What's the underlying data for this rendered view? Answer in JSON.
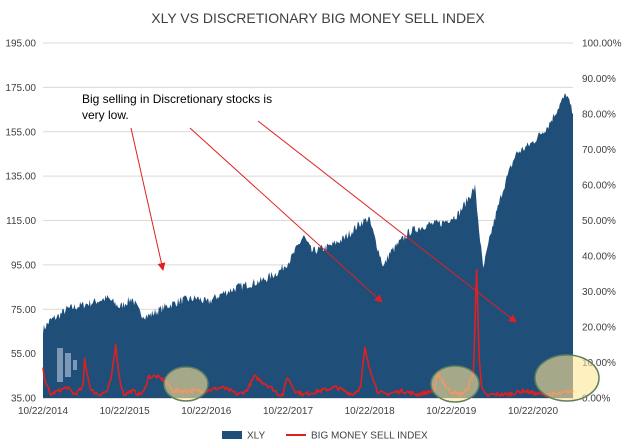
{
  "chart_data": {
    "type": "area",
    "title": "XLY VS DISCRETIONARY BIG MONEY SELL INDEX",
    "xlabel": "",
    "ylabel_left": "",
    "ylabel_right": "",
    "x_ticks": [
      "10/22/2014",
      "10/22/2015",
      "10/22/2016",
      "10/22/2017",
      "10/22/2018",
      "10/22/2019",
      "10/22/2020"
    ],
    "y_left_ticks": [
      "35.00",
      "55.00",
      "75.00",
      "95.00",
      "115.00",
      "135.00",
      "155.00",
      "175.00",
      "195.00"
    ],
    "y_right_ticks": [
      "0.00%",
      "10.00%",
      "20.00%",
      "30.00%",
      "40.00%",
      "50.00%",
      "60.00%",
      "70.00%",
      "80.00%",
      "90.00%",
      "100.00%"
    ],
    "ylim_left": [
      35,
      195
    ],
    "ylim_right": [
      0,
      100
    ],
    "xlim_years": [
      2014.81,
      2021.3
    ],
    "grid": true,
    "legend_position": "bottom",
    "series": [
      {
        "name": "XLY",
        "kind": "area",
        "axis": "left",
        "color": "#1f4e79",
        "x": [
          2014.81,
          2014.9,
          2015.0,
          2015.1,
          2015.3,
          2015.5,
          2015.6,
          2015.75,
          2015.9,
          2016.0,
          2016.1,
          2016.3,
          2016.5,
          2016.7,
          2016.82,
          2017.0,
          2017.2,
          2017.5,
          2017.7,
          2017.85,
          2018.0,
          2018.1,
          2018.3,
          2018.5,
          2018.7,
          2018.8,
          2018.98,
          2019.05,
          2019.3,
          2019.5,
          2019.7,
          2019.9,
          2020.1,
          2020.15,
          2020.2,
          2020.3,
          2020.45,
          2020.6,
          2020.8,
          2021.0,
          2021.15,
          2021.22,
          2021.3
        ],
        "values": [
          66,
          70,
          72,
          75,
          77,
          79,
          80,
          76,
          80,
          73,
          72,
          76,
          79,
          80,
          78,
          82,
          85,
          88,
          92,
          98,
          108,
          101,
          103,
          107,
          114,
          116,
          94,
          100,
          110,
          113,
          114,
          118,
          130,
          111,
          93,
          110,
          130,
          145,
          150,
          158,
          168,
          172,
          163
        ]
      },
      {
        "name": "BIG MONEY SELL INDEX",
        "kind": "line",
        "axis": "right",
        "color": "#e02020",
        "x": [
          2014.81,
          2014.85,
          2014.9,
          2015.0,
          2015.1,
          2015.2,
          2015.3,
          2015.32,
          2015.36,
          2015.4,
          2015.5,
          2015.6,
          2015.65,
          2015.7,
          2015.75,
          2015.8,
          2015.9,
          2016.0,
          2016.05,
          2016.1,
          2016.2,
          2016.3,
          2016.4,
          2016.6,
          2016.8,
          2017.0,
          2017.2,
          2017.3,
          2017.4,
          2017.6,
          2017.7,
          2017.75,
          2017.8,
          2017.9,
          2018.0,
          2018.2,
          2018.4,
          2018.6,
          2018.7,
          2018.75,
          2018.8,
          2018.85,
          2018.9,
          2019.0,
          2019.2,
          2019.4,
          2019.6,
          2019.65,
          2019.7,
          2019.75,
          2019.8,
          2019.9,
          2020.0,
          2020.08,
          2020.12,
          2020.15,
          2020.18,
          2020.22,
          2020.25,
          2020.3,
          2020.5,
          2020.7,
          2020.9,
          2021.1,
          2021.3
        ],
        "values": [
          8,
          4,
          1,
          2,
          3,
          1,
          3,
          11,
          6,
          2,
          1,
          2,
          6,
          15,
          5,
          1,
          2,
          1,
          2,
          6,
          6,
          5,
          2,
          2,
          2,
          3,
          1,
          2,
          6,
          3,
          1,
          1,
          6,
          2,
          1,
          2,
          3,
          1,
          3,
          14,
          9,
          6,
          2,
          1,
          2,
          1,
          2,
          7,
          5,
          3,
          2,
          1,
          2,
          7,
          36,
          12,
          3,
          1,
          0.5,
          1,
          1,
          2,
          1,
          1,
          2
        ]
      }
    ],
    "annotations": [
      "Big selling in Discretionary stocks is",
      "very low."
    ],
    "legend": [
      {
        "label": "XLY",
        "marker": "rect",
        "color": "#1f4e79"
      },
      {
        "label": "BIG MONEY SELL INDEX",
        "marker": "line",
        "color": "#e02020"
      }
    ]
  }
}
